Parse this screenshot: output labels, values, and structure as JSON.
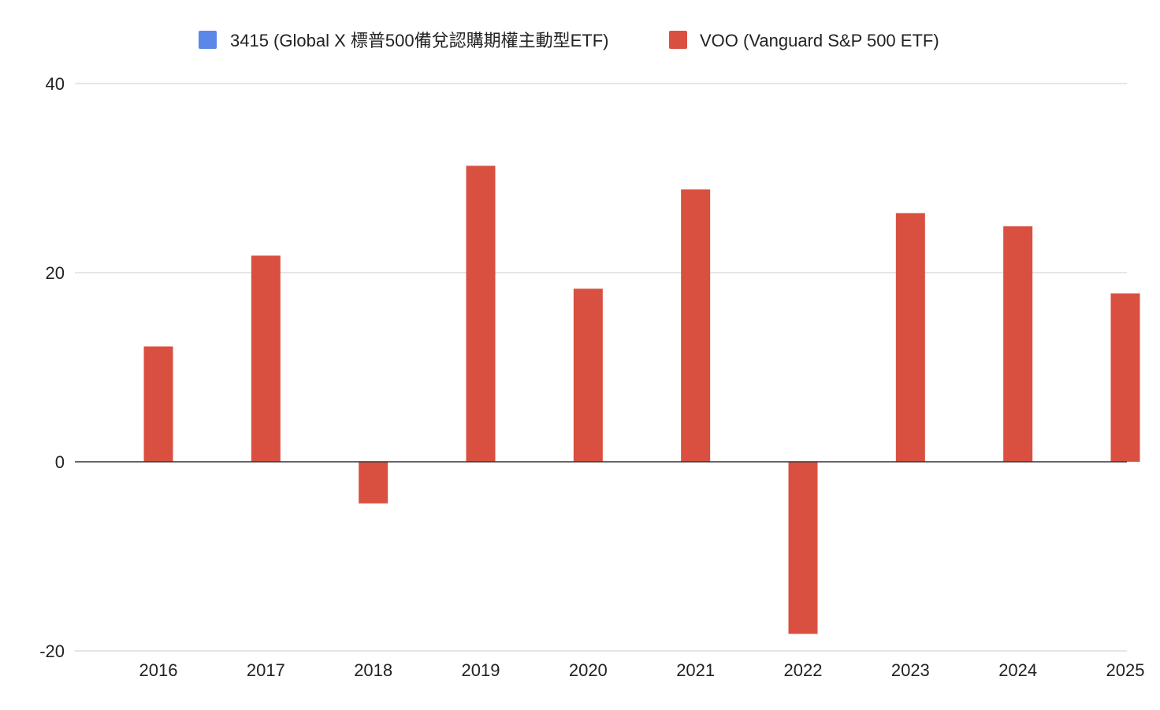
{
  "chart_data": {
    "type": "bar",
    "title": "",
    "xlabel": "",
    "ylabel": "",
    "categories": [
      "2016",
      "2017",
      "2018",
      "2019",
      "2020",
      "2021",
      "2022",
      "2023",
      "2024",
      "2025"
    ],
    "ylim": [
      -20,
      40
    ],
    "yticks": [
      -20,
      0,
      20,
      40
    ],
    "grid": true,
    "legend_position": "top-center",
    "series": [
      {
        "name": "3415 (Global X 標普500備兌認購期權主動型ETF)",
        "color": "#5b87e8",
        "values": [
          null,
          null,
          null,
          null,
          null,
          null,
          null,
          null,
          null,
          null
        ]
      },
      {
        "name": "VOO (Vanguard S&P 500 ETF)",
        "color": "#d95040",
        "values": [
          12.2,
          21.8,
          -4.4,
          31.3,
          18.3,
          28.8,
          -18.2,
          26.3,
          24.9,
          17.8
        ]
      }
    ]
  }
}
